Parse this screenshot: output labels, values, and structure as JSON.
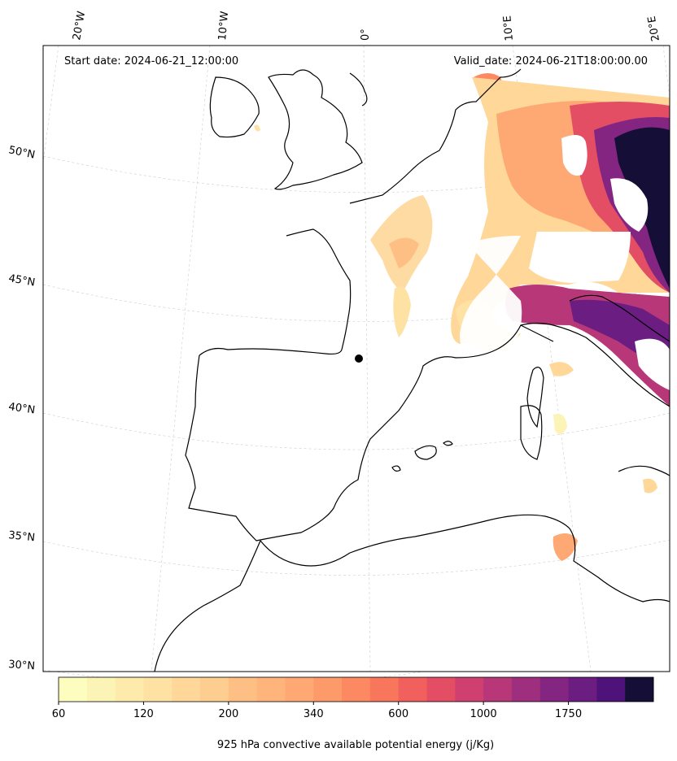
{
  "map": {
    "start_label": "Start date: 2024-06-21_12:00:00",
    "valid_label": "Valid_date: 2024-06-21T18:00:00.00",
    "lon_labels": [
      "20°W",
      "10°W",
      "0°",
      "10°E",
      "20°E"
    ],
    "lat_labels": [
      "50°N",
      "45°N",
      "40°N",
      "35°N",
      "30°N"
    ],
    "colorbar": {
      "tick_labels": [
        "60",
        "120",
        "200",
        "340",
        "600",
        "1000",
        "1750"
      ],
      "label": "925 hPa convective available potential energy (j/Kg)",
      "colors": [
        "#fcfdbf",
        "#fcf4b6",
        "#fdebac",
        "#fde2a3",
        "#fed799",
        "#fecd90",
        "#febf84",
        "#feb47b",
        "#fea873",
        "#fd9a6a",
        "#fc8961",
        "#f8765c",
        "#f1605d",
        "#e34e65",
        "#cf4070",
        "#b73779",
        "#9e2f7f",
        "#842681",
        "#6b1d81",
        "#4f127b",
        "#150e37"
      ]
    }
  }
}
